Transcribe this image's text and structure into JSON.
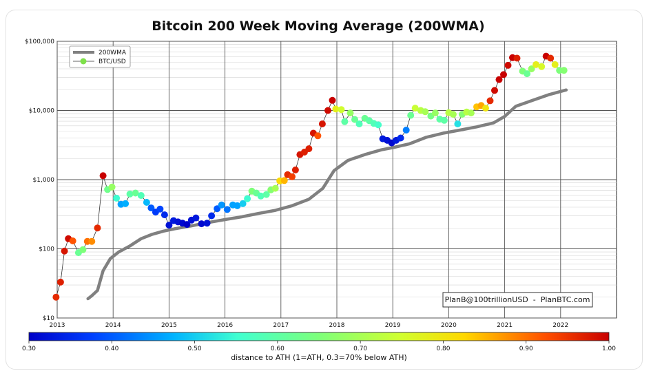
{
  "chart_data": {
    "type": "scatter",
    "title": "Bitcoin 200 Week Moving Average (200WMA)",
    "y_scale": "log",
    "ylim": [
      10,
      100000
    ],
    "xlim": [
      2013,
      2023
    ],
    "x_ticks": [
      "2013",
      "2014",
      "2015",
      "2016",
      "2017",
      "2018",
      "2019",
      "2020",
      "2021",
      "2022"
    ],
    "y_ticks": [
      "$10",
      "$100",
      "$1,000",
      "$10,000",
      "$100,000"
    ],
    "grid": true,
    "legend": {
      "position": "top-left",
      "entries": [
        {
          "label": "200WMA",
          "color": "#808080"
        },
        {
          "label": "BTC/USD",
          "color": "#7ee04a"
        }
      ]
    },
    "annotation": "PlanB@100trillionUSD  -  PlanBTC.com",
    "colorbar": {
      "label": "distance to ATH (1=ATH, 0.3=70% below ATH)",
      "ticks": [
        "0.30",
        "0.40",
        "0.50",
        "0.60",
        "0.70",
        "0.80",
        "0.90",
        "1.00"
      ],
      "range": [
        0.3,
        1.0
      ]
    },
    "series": [
      {
        "name": "200WMA",
        "points": [
          [
            2013.55,
            19
          ],
          [
            2013.62,
            21
          ],
          [
            2013.72,
            25
          ],
          [
            2013.82,
            48
          ],
          [
            2013.95,
            72
          ],
          [
            2014.1,
            90
          ],
          [
            2014.3,
            110
          ],
          [
            2014.5,
            140
          ],
          [
            2014.7,
            162
          ],
          [
            2014.9,
            180
          ],
          [
            2015.1,
            195
          ],
          [
            2015.4,
            215
          ],
          [
            2015.7,
            240
          ],
          [
            2016.0,
            265
          ],
          [
            2016.3,
            290
          ],
          [
            2016.6,
            325
          ],
          [
            2016.9,
            360
          ],
          [
            2017.2,
            420
          ],
          [
            2017.5,
            520
          ],
          [
            2017.75,
            750
          ],
          [
            2017.95,
            1350
          ],
          [
            2018.2,
            1900
          ],
          [
            2018.5,
            2300
          ],
          [
            2018.8,
            2700
          ],
          [
            2019.0,
            2900
          ],
          [
            2019.3,
            3300
          ],
          [
            2019.6,
            4100
          ],
          [
            2019.9,
            4700
          ],
          [
            2020.2,
            5200
          ],
          [
            2020.5,
            5800
          ],
          [
            2020.8,
            6600
          ],
          [
            2021.0,
            8200
          ],
          [
            2021.2,
            11500
          ],
          [
            2021.5,
            14000
          ],
          [
            2021.8,
            17000
          ],
          [
            2022.1,
            19800
          ]
        ]
      },
      {
        "name": "BTC/USD",
        "points": [
          [
            2012.98,
            20,
            0.96
          ],
          [
            2013.06,
            33,
            0.97
          ],
          [
            2013.13,
            93,
            0.98
          ],
          [
            2013.2,
            140,
            0.99
          ],
          [
            2013.28,
            130,
            0.92
          ],
          [
            2013.38,
            88,
            0.62
          ],
          [
            2013.46,
            97,
            0.65
          ],
          [
            2013.54,
            128,
            0.9
          ],
          [
            2013.62,
            128,
            0.88
          ],
          [
            2013.72,
            200,
            0.96
          ],
          [
            2013.82,
            1140,
            1.0
          ],
          [
            2013.9,
            720,
            0.63
          ],
          [
            2013.98,
            780,
            0.68
          ],
          [
            2014.06,
            540,
            0.55
          ],
          [
            2014.14,
            440,
            0.46
          ],
          [
            2014.22,
            450,
            0.47
          ],
          [
            2014.3,
            620,
            0.6
          ],
          [
            2014.4,
            640,
            0.62
          ],
          [
            2014.5,
            590,
            0.58
          ],
          [
            2014.6,
            470,
            0.48
          ],
          [
            2014.68,
            390,
            0.4
          ],
          [
            2014.76,
            340,
            0.37
          ],
          [
            2014.84,
            375,
            0.38
          ],
          [
            2014.92,
            310,
            0.35
          ],
          [
            2015.0,
            220,
            0.32
          ],
          [
            2015.08,
            255,
            0.33
          ],
          [
            2015.16,
            245,
            0.32
          ],
          [
            2015.24,
            235,
            0.31
          ],
          [
            2015.32,
            225,
            0.3
          ],
          [
            2015.4,
            260,
            0.32
          ],
          [
            2015.48,
            280,
            0.33
          ],
          [
            2015.58,
            230,
            0.31
          ],
          [
            2015.68,
            235,
            0.32
          ],
          [
            2015.76,
            300,
            0.35
          ],
          [
            2015.86,
            380,
            0.4
          ],
          [
            2015.94,
            430,
            0.45
          ],
          [
            2016.04,
            370,
            0.42
          ],
          [
            2016.14,
            430,
            0.46
          ],
          [
            2016.22,
            420,
            0.46
          ],
          [
            2016.32,
            450,
            0.5
          ],
          [
            2016.4,
            530,
            0.55
          ],
          [
            2016.48,
            680,
            0.65
          ],
          [
            2016.56,
            640,
            0.62
          ],
          [
            2016.64,
            580,
            0.58
          ],
          [
            2016.74,
            610,
            0.6
          ],
          [
            2016.82,
            710,
            0.66
          ],
          [
            2016.9,
            750,
            0.7
          ],
          [
            2016.98,
            960,
            0.82
          ],
          [
            2017.06,
            970,
            0.85
          ],
          [
            2017.12,
            1180,
            0.96
          ],
          [
            2017.2,
            1100,
            0.94
          ],
          [
            2017.26,
            1380,
            0.97
          ],
          [
            2017.34,
            2300,
            0.98
          ],
          [
            2017.42,
            2500,
            0.97
          ],
          [
            2017.5,
            2800,
            0.97
          ],
          [
            2017.58,
            4700,
            0.98
          ],
          [
            2017.66,
            4300,
            0.92
          ],
          [
            2017.74,
            6400,
            0.98
          ],
          [
            2017.84,
            10000,
            0.99
          ],
          [
            2017.92,
            14000,
            1.0
          ],
          [
            2017.98,
            10500,
            0.78
          ],
          [
            2018.08,
            10300,
            0.75
          ],
          [
            2018.14,
            6900,
            0.6
          ],
          [
            2018.24,
            9200,
            0.68
          ],
          [
            2018.32,
            7400,
            0.62
          ],
          [
            2018.4,
            6400,
            0.58
          ],
          [
            2018.5,
            7700,
            0.62
          ],
          [
            2018.58,
            7100,
            0.6
          ],
          [
            2018.66,
            6500,
            0.58
          ],
          [
            2018.74,
            6200,
            0.56
          ],
          [
            2018.82,
            3900,
            0.33
          ],
          [
            2018.9,
            3700,
            0.32
          ],
          [
            2018.98,
            3400,
            0.31
          ],
          [
            2019.06,
            3700,
            0.33
          ],
          [
            2019.14,
            4000,
            0.35
          ],
          [
            2019.24,
            5200,
            0.43
          ],
          [
            2019.32,
            8500,
            0.62
          ],
          [
            2019.4,
            10800,
            0.74
          ],
          [
            2019.5,
            10000,
            0.72
          ],
          [
            2019.58,
            9600,
            0.7
          ],
          [
            2019.68,
            8300,
            0.64
          ],
          [
            2019.76,
            9200,
            0.68
          ],
          [
            2019.84,
            7500,
            0.6
          ],
          [
            2019.92,
            7200,
            0.6
          ],
          [
            2020.0,
            9300,
            0.72
          ],
          [
            2020.08,
            8800,
            0.7
          ],
          [
            2020.16,
            6400,
            0.52
          ],
          [
            2020.24,
            8800,
            0.66
          ],
          [
            2020.32,
            9500,
            0.72
          ],
          [
            2020.4,
            9200,
            0.7
          ],
          [
            2020.5,
            11300,
            0.84
          ],
          [
            2020.58,
            11800,
            0.86
          ],
          [
            2020.66,
            10800,
            0.8
          ],
          [
            2020.74,
            13800,
            0.96
          ],
          [
            2020.82,
            19500,
            0.99
          ],
          [
            2020.9,
            28000,
            1.0
          ],
          [
            2020.98,
            33000,
            1.0
          ],
          [
            2021.06,
            45000,
            0.99
          ],
          [
            2021.14,
            58000,
            1.0
          ],
          [
            2021.22,
            57000,
            0.97
          ],
          [
            2021.32,
            37000,
            0.65
          ],
          [
            2021.4,
            34000,
            0.62
          ],
          [
            2021.48,
            40000,
            0.68
          ],
          [
            2021.56,
            46000,
            0.78
          ],
          [
            2021.66,
            43000,
            0.76
          ],
          [
            2021.74,
            61000,
            1.0
          ],
          [
            2021.82,
            57000,
            0.96
          ],
          [
            2021.9,
            46000,
            0.78
          ],
          [
            2021.98,
            38000,
            0.65
          ],
          [
            2022.06,
            38000,
            0.66
          ]
        ]
      }
    ]
  }
}
